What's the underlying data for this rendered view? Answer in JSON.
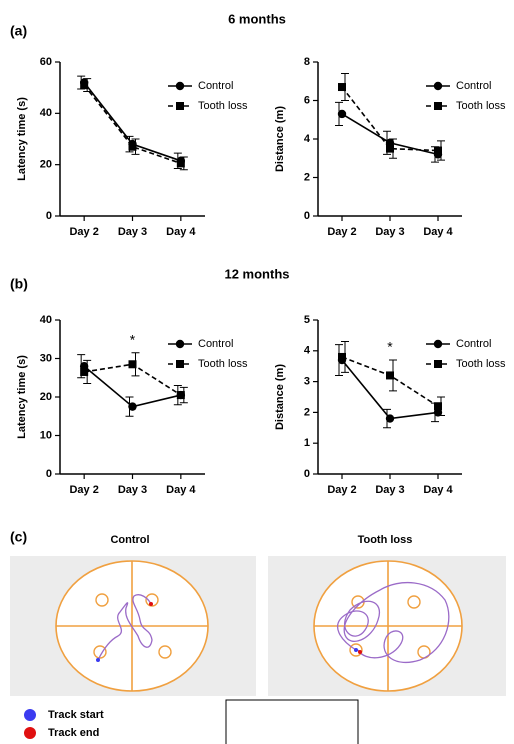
{
  "panels": [
    {
      "label": "(a)",
      "title": "6 months"
    },
    {
      "label": "(b)",
      "title": "12 months"
    }
  ],
  "chart_data": [
    {
      "type": "line",
      "ylabel": "Latency time (s)",
      "categories": [
        "Day 2",
        "Day 3",
        "Day 4"
      ],
      "ylim": [
        0,
        60
      ],
      "yticks": [
        0,
        20,
        40,
        60
      ],
      "legend": "upper right",
      "series": [
        {
          "name": "Control",
          "color": "#000000",
          "marker": "circle",
          "dashed": false,
          "values": [
            52,
            28,
            21.5
          ],
          "errors": [
            2.5,
            3,
            3
          ]
        },
        {
          "name": "Tooth loss",
          "color": "#000000",
          "marker": "square",
          "dashed": true,
          "values": [
            51,
            27,
            20.5
          ],
          "errors": [
            2.5,
            3,
            2.5
          ]
        }
      ]
    },
    {
      "type": "line",
      "ylabel": "Distance (m)",
      "categories": [
        "Day 2",
        "Day 3",
        "Day 4"
      ],
      "ylim": [
        0,
        8
      ],
      "yticks": [
        0,
        2,
        4,
        6,
        8
      ],
      "legend": "upper right",
      "series": [
        {
          "name": "Control",
          "color": "#000000",
          "marker": "circle",
          "dashed": false,
          "values": [
            5.3,
            3.8,
            3.2
          ],
          "errors": [
            0.6,
            0.6,
            0.4
          ]
        },
        {
          "name": "Tooth loss",
          "color": "#000000",
          "marker": "square",
          "dashed": true,
          "values": [
            6.7,
            3.5,
            3.4
          ],
          "errors": [
            0.7,
            0.5,
            0.5
          ]
        }
      ]
    },
    {
      "type": "line",
      "ylabel": "Latency time (s)",
      "categories": [
        "Day 2",
        "Day 3",
        "Day 4"
      ],
      "ylim": [
        0,
        40
      ],
      "yticks": [
        0,
        10,
        20,
        30,
        40
      ],
      "legend": "upper right",
      "annotations": [
        {
          "text": "*",
          "x": "Day 3"
        }
      ],
      "series": [
        {
          "name": "Control",
          "color": "#000000",
          "marker": "circle",
          "dashed": false,
          "values": [
            28,
            17.5,
            20.5
          ],
          "errors": [
            3,
            2.5,
            2.5
          ]
        },
        {
          "name": "Tooth loss",
          "color": "#000000",
          "marker": "square",
          "dashed": true,
          "values": [
            26.5,
            28.5,
            20.5
          ],
          "errors": [
            3,
            3,
            2
          ]
        }
      ]
    },
    {
      "type": "line",
      "ylabel": "Distance (m)",
      "categories": [
        "Day 2",
        "Day 3",
        "Day 4"
      ],
      "ylim": [
        0,
        5
      ],
      "yticks": [
        0,
        1,
        2,
        3,
        4,
        5
      ],
      "legend": "upper right",
      "annotations": [
        {
          "text": "*",
          "x": "Day 3"
        }
      ],
      "series": [
        {
          "name": "Control",
          "color": "#000000",
          "marker": "circle",
          "dashed": false,
          "values": [
            3.7,
            1.8,
            2.0
          ],
          "errors": [
            0.5,
            0.3,
            0.3
          ]
        },
        {
          "name": "Tooth loss",
          "color": "#000000",
          "marker": "square",
          "dashed": true,
          "values": [
            3.8,
            3.2,
            2.2
          ],
          "errors": [
            0.5,
            0.5,
            0.3
          ]
        }
      ]
    }
  ],
  "maze": {
    "label": "(c)",
    "groups": [
      "Control",
      "Tooth loss"
    ],
    "legend": [
      {
        "label": "Track start",
        "color": "#3b3bf0"
      },
      {
        "label": "Track end",
        "color": "#e01010"
      }
    ]
  }
}
